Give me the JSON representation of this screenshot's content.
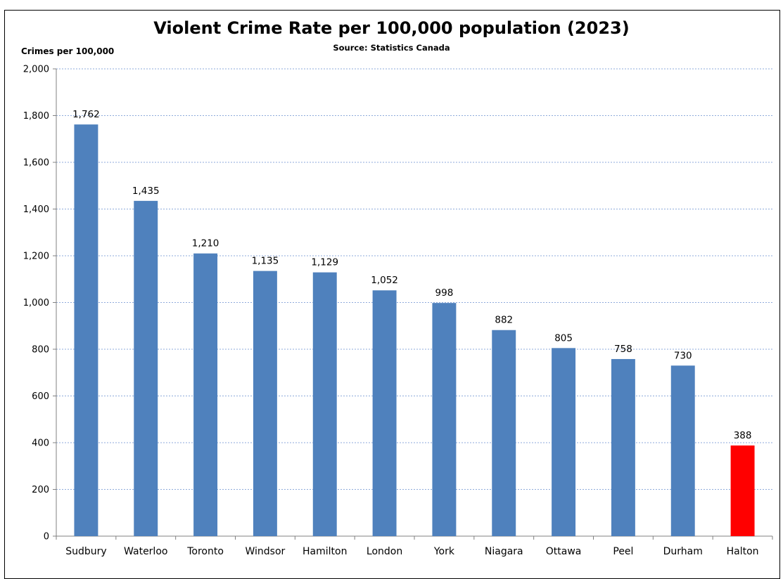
{
  "chart_data": {
    "type": "bar",
    "title": "Violent Crime Rate per 100,000 population (2023)",
    "subtitle": "Source: Statistics Canada",
    "ylabel": "Crimes per 100,000",
    "xlabel": "",
    "ylim": [
      0,
      2000
    ],
    "yticks": [
      0,
      200,
      400,
      600,
      800,
      1000,
      1200,
      1400,
      1600,
      1800,
      2000
    ],
    "ytick_labels": [
      "0",
      "200",
      "400",
      "600",
      "800",
      "1,000",
      "1,200",
      "1,400",
      "1,600",
      "1,800",
      "2,000"
    ],
    "grid": "horizontal dotted",
    "categories": [
      "Sudbury",
      "Waterloo",
      "Toronto",
      "Windsor",
      "Hamilton",
      "London",
      "York",
      "Niagara",
      "Ottawa",
      "Peel",
      "Durham",
      "Halton"
    ],
    "values": [
      1762,
      1435,
      1210,
      1135,
      1129,
      1052,
      998,
      882,
      805,
      758,
      730,
      388
    ],
    "data_labels": [
      "1,762",
      "1,435",
      "1,210",
      "1,135",
      "1,129",
      "1,052",
      "998",
      "882",
      "805",
      "758",
      "730",
      "388"
    ],
    "colors": {
      "bar": "#4f81bd",
      "highlight": "#ff0000",
      "grid": "#8eaadb",
      "axis": "#808080"
    },
    "highlight_index": 11
  }
}
